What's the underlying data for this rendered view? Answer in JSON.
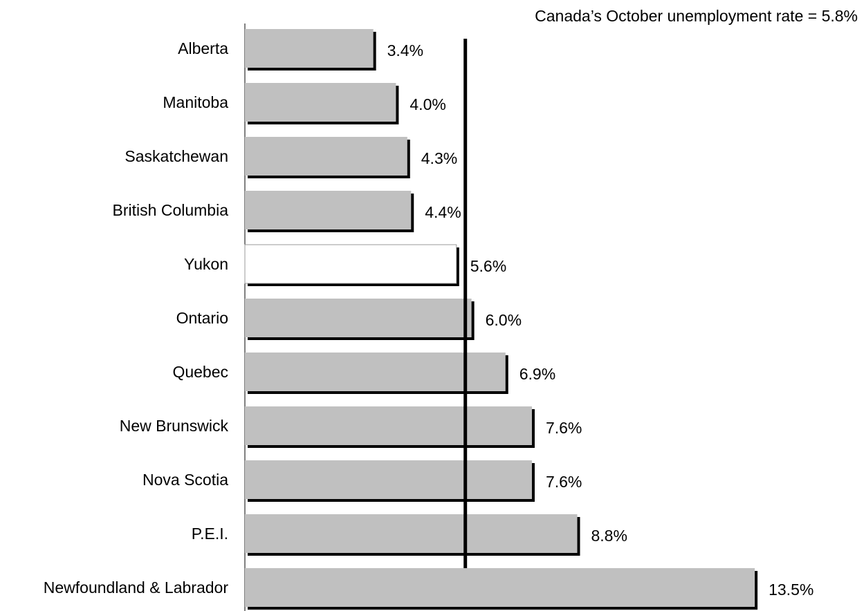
{
  "chart_data": {
    "type": "bar",
    "orientation": "horizontal",
    "categories": [
      "Alberta",
      "Manitoba",
      "Saskatchewan",
      "British Columbia",
      "Yukon",
      "Ontario",
      "Quebec",
      "New Brunswick",
      "Nova Scotia",
      "P.E.I.",
      "Newfoundland & Labrador"
    ],
    "values": [
      3.4,
      4.0,
      4.3,
      4.4,
      5.6,
      6.0,
      6.9,
      7.6,
      7.6,
      8.8,
      13.5
    ],
    "value_labels": [
      "3.4%",
      "4.0%",
      "4.3%",
      "4.4%",
      "5.6%",
      "6.0%",
      "6.9%",
      "7.6%",
      "7.6%",
      "8.8%",
      "13.5%"
    ],
    "highlight_category": "Yukon",
    "reference_line": {
      "value": 5.8,
      "label": "Canada’s October unemployment rate = 5.8%"
    },
    "xlim": [
      0,
      14.0
    ],
    "grid": false,
    "legend": "none",
    "colors": {
      "bar": "#c0c0c0",
      "highlight_bar": "#ffffff",
      "shadow": "#000000",
      "reference_line": "#000000"
    }
  }
}
